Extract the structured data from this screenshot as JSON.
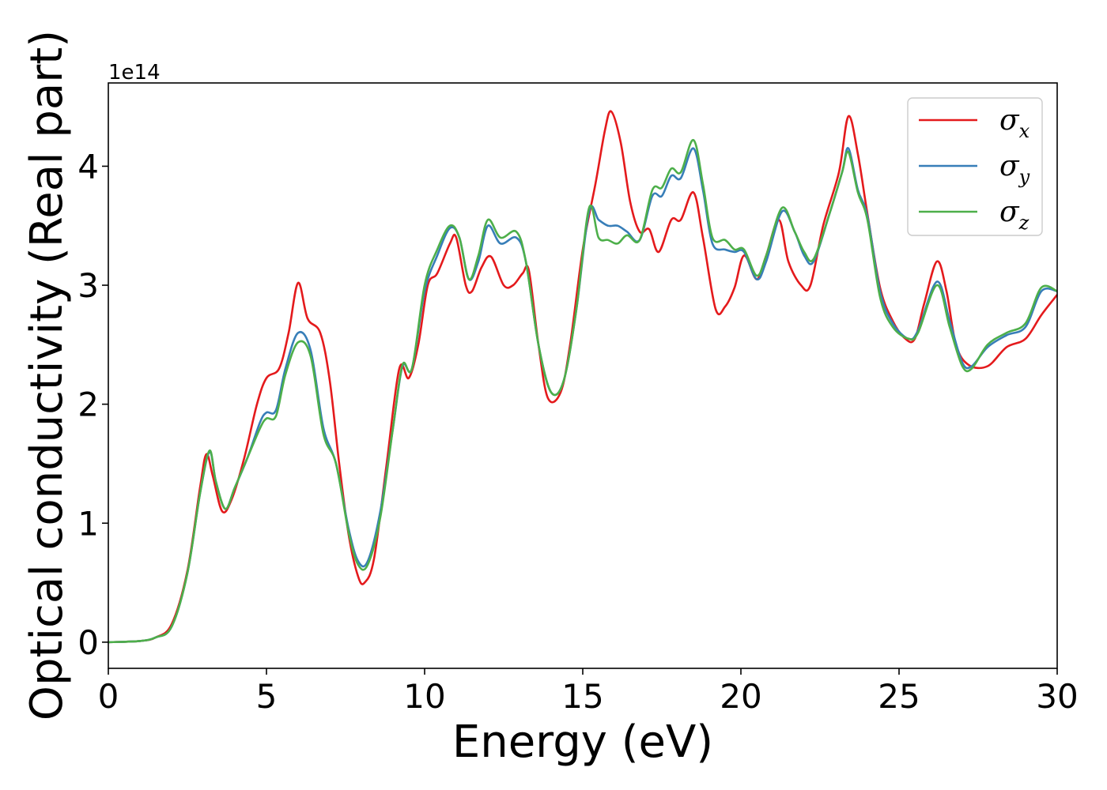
{
  "chart_data": {
    "type": "line",
    "title": "",
    "xlabel": "Energy (eV)",
    "ylabel": "Optical conductivity (Real part)",
    "y_offset_label": "1e14",
    "xlim": [
      0,
      30
    ],
    "ylim": [
      -0.22,
      4.7
    ],
    "x_ticks": [
      0,
      5,
      10,
      15,
      20,
      25,
      30
    ],
    "y_ticks": [
      0,
      1,
      2,
      3,
      4
    ],
    "grid": false,
    "legend_position": "top-right",
    "series": [
      {
        "name": "σx",
        "symbol": "σ",
        "subscript": "x",
        "color": "#e41a1c",
        "points": [
          [
            0,
            0
          ],
          [
            1,
            0.01
          ],
          [
            1.5,
            0.04
          ],
          [
            2,
            0.15
          ],
          [
            2.5,
            0.6
          ],
          [
            2.9,
            1.3
          ],
          [
            3.1,
            1.58
          ],
          [
            3.3,
            1.4
          ],
          [
            3.6,
            1.1
          ],
          [
            3.9,
            1.2
          ],
          [
            4.3,
            1.55
          ],
          [
            4.7,
            2.0
          ],
          [
            5.0,
            2.22
          ],
          [
            5.4,
            2.3
          ],
          [
            5.7,
            2.6
          ],
          [
            6.0,
            3.02
          ],
          [
            6.3,
            2.72
          ],
          [
            6.7,
            2.6
          ],
          [
            7.0,
            2.2
          ],
          [
            7.3,
            1.5
          ],
          [
            7.6,
            0.9
          ],
          [
            7.9,
            0.55
          ],
          [
            8.1,
            0.5
          ],
          [
            8.4,
            0.7
          ],
          [
            8.8,
            1.5
          ],
          [
            9.2,
            2.3
          ],
          [
            9.5,
            2.22
          ],
          [
            9.8,
            2.5
          ],
          [
            10.1,
            3.0
          ],
          [
            10.4,
            3.1
          ],
          [
            10.8,
            3.35
          ],
          [
            11.0,
            3.4
          ],
          [
            11.3,
            3.0
          ],
          [
            11.5,
            2.95
          ],
          [
            11.8,
            3.15
          ],
          [
            12.1,
            3.24
          ],
          [
            12.5,
            3.0
          ],
          [
            12.8,
            3.0
          ],
          [
            13.1,
            3.1
          ],
          [
            13.3,
            3.12
          ],
          [
            13.6,
            2.5
          ],
          [
            13.9,
            2.05
          ],
          [
            14.3,
            2.1
          ],
          [
            14.6,
            2.5
          ],
          [
            15.0,
            3.3
          ],
          [
            15.4,
            3.85
          ],
          [
            15.7,
            4.3
          ],
          [
            15.9,
            4.46
          ],
          [
            16.2,
            4.2
          ],
          [
            16.5,
            3.7
          ],
          [
            16.8,
            3.45
          ],
          [
            17.1,
            3.47
          ],
          [
            17.4,
            3.28
          ],
          [
            17.8,
            3.55
          ],
          [
            18.1,
            3.55
          ],
          [
            18.5,
            3.78
          ],
          [
            18.8,
            3.4
          ],
          [
            19.2,
            2.8
          ],
          [
            19.5,
            2.82
          ],
          [
            19.8,
            2.98
          ],
          [
            20.1,
            3.25
          ],
          [
            20.5,
            3.05
          ],
          [
            20.8,
            3.25
          ],
          [
            21.2,
            3.55
          ],
          [
            21.5,
            3.2
          ],
          [
            21.9,
            3.0
          ],
          [
            22.2,
            3.0
          ],
          [
            22.6,
            3.5
          ],
          [
            23.1,
            3.95
          ],
          [
            23.4,
            4.42
          ],
          [
            23.7,
            4.1
          ],
          [
            24.0,
            3.6
          ],
          [
            24.4,
            2.98
          ],
          [
            24.8,
            2.7
          ],
          [
            25.2,
            2.55
          ],
          [
            25.5,
            2.55
          ],
          [
            25.8,
            2.85
          ],
          [
            26.2,
            3.2
          ],
          [
            26.5,
            2.95
          ],
          [
            26.8,
            2.5
          ],
          [
            27.2,
            2.33
          ],
          [
            27.8,
            2.32
          ],
          [
            28.4,
            2.48
          ],
          [
            29.0,
            2.55
          ],
          [
            29.5,
            2.75
          ],
          [
            30,
            2.92
          ]
        ]
      },
      {
        "name": "σy",
        "symbol": "σ",
        "subscript": "y",
        "color": "#377eb8",
        "points": [
          [
            0,
            0
          ],
          [
            1,
            0.01
          ],
          [
            1.5,
            0.04
          ],
          [
            2,
            0.13
          ],
          [
            2.5,
            0.58
          ],
          [
            2.9,
            1.25
          ],
          [
            3.2,
            1.6
          ],
          [
            3.4,
            1.35
          ],
          [
            3.7,
            1.12
          ],
          [
            4.0,
            1.3
          ],
          [
            4.4,
            1.55
          ],
          [
            4.8,
            1.85
          ],
          [
            5.0,
            1.93
          ],
          [
            5.3,
            1.95
          ],
          [
            5.6,
            2.3
          ],
          [
            6.0,
            2.6
          ],
          [
            6.4,
            2.45
          ],
          [
            6.8,
            1.8
          ],
          [
            7.2,
            1.5
          ],
          [
            7.6,
            0.95
          ],
          [
            7.9,
            0.68
          ],
          [
            8.2,
            0.68
          ],
          [
            8.6,
            1.1
          ],
          [
            9.0,
            1.8
          ],
          [
            9.3,
            2.32
          ],
          [
            9.6,
            2.3
          ],
          [
            10.0,
            2.95
          ],
          [
            10.4,
            3.25
          ],
          [
            10.8,
            3.48
          ],
          [
            11.1,
            3.4
          ],
          [
            11.4,
            3.05
          ],
          [
            11.7,
            3.2
          ],
          [
            12.0,
            3.5
          ],
          [
            12.4,
            3.35
          ],
          [
            12.9,
            3.4
          ],
          [
            13.2,
            3.2
          ],
          [
            13.6,
            2.5
          ],
          [
            14.0,
            2.1
          ],
          [
            14.4,
            2.2
          ],
          [
            14.8,
            2.8
          ],
          [
            15.2,
            3.62
          ],
          [
            15.5,
            3.55
          ],
          [
            15.8,
            3.5
          ],
          [
            16.1,
            3.5
          ],
          [
            16.4,
            3.45
          ],
          [
            16.8,
            3.38
          ],
          [
            17.2,
            3.75
          ],
          [
            17.5,
            3.75
          ],
          [
            17.8,
            3.92
          ],
          [
            18.1,
            3.9
          ],
          [
            18.5,
            4.15
          ],
          [
            18.8,
            3.8
          ],
          [
            19.1,
            3.35
          ],
          [
            19.5,
            3.3
          ],
          [
            19.8,
            3.28
          ],
          [
            20.1,
            3.28
          ],
          [
            20.5,
            3.05
          ],
          [
            20.8,
            3.2
          ],
          [
            21.3,
            3.62
          ],
          [
            21.7,
            3.45
          ],
          [
            22.0,
            3.25
          ],
          [
            22.3,
            3.2
          ],
          [
            22.8,
            3.6
          ],
          [
            23.2,
            3.95
          ],
          [
            23.4,
            4.15
          ],
          [
            23.7,
            3.8
          ],
          [
            24.0,
            3.58
          ],
          [
            24.4,
            2.95
          ],
          [
            24.8,
            2.68
          ],
          [
            25.3,
            2.55
          ],
          [
            25.6,
            2.62
          ],
          [
            26.2,
            3.03
          ],
          [
            26.6,
            2.7
          ],
          [
            27.0,
            2.35
          ],
          [
            27.3,
            2.32
          ],
          [
            27.8,
            2.48
          ],
          [
            28.4,
            2.58
          ],
          [
            29.0,
            2.65
          ],
          [
            29.5,
            2.95
          ],
          [
            30,
            2.95
          ]
        ]
      },
      {
        "name": "σz",
        "symbol": "σ",
        "subscript": "z",
        "color": "#4daf4a",
        "points": [
          [
            0,
            0
          ],
          [
            1,
            0.01
          ],
          [
            1.5,
            0.04
          ],
          [
            2,
            0.13
          ],
          [
            2.5,
            0.58
          ],
          [
            2.9,
            1.25
          ],
          [
            3.2,
            1.61
          ],
          [
            3.4,
            1.35
          ],
          [
            3.7,
            1.12
          ],
          [
            4.0,
            1.3
          ],
          [
            4.4,
            1.55
          ],
          [
            4.8,
            1.8
          ],
          [
            5.0,
            1.88
          ],
          [
            5.3,
            1.9
          ],
          [
            5.6,
            2.25
          ],
          [
            6.0,
            2.52
          ],
          [
            6.4,
            2.4
          ],
          [
            6.8,
            1.75
          ],
          [
            7.2,
            1.5
          ],
          [
            7.6,
            0.92
          ],
          [
            7.9,
            0.65
          ],
          [
            8.2,
            0.65
          ],
          [
            8.6,
            1.05
          ],
          [
            9.0,
            1.8
          ],
          [
            9.3,
            2.33
          ],
          [
            9.6,
            2.3
          ],
          [
            10.0,
            3.0
          ],
          [
            10.4,
            3.3
          ],
          [
            10.8,
            3.5
          ],
          [
            11.1,
            3.4
          ],
          [
            11.4,
            3.05
          ],
          [
            11.7,
            3.25
          ],
          [
            12.0,
            3.55
          ],
          [
            12.4,
            3.4
          ],
          [
            12.9,
            3.45
          ],
          [
            13.2,
            3.2
          ],
          [
            13.6,
            2.5
          ],
          [
            14.0,
            2.1
          ],
          [
            14.4,
            2.2
          ],
          [
            14.8,
            2.8
          ],
          [
            15.2,
            3.65
          ],
          [
            15.5,
            3.4
          ],
          [
            15.8,
            3.38
          ],
          [
            16.1,
            3.35
          ],
          [
            16.4,
            3.42
          ],
          [
            16.8,
            3.38
          ],
          [
            17.2,
            3.8
          ],
          [
            17.5,
            3.82
          ],
          [
            17.8,
            3.98
          ],
          [
            18.1,
            3.95
          ],
          [
            18.5,
            4.22
          ],
          [
            18.8,
            3.85
          ],
          [
            19.1,
            3.4
          ],
          [
            19.5,
            3.38
          ],
          [
            19.8,
            3.3
          ],
          [
            20.1,
            3.3
          ],
          [
            20.5,
            3.08
          ],
          [
            20.8,
            3.25
          ],
          [
            21.3,
            3.65
          ],
          [
            21.7,
            3.45
          ],
          [
            22.0,
            3.28
          ],
          [
            22.3,
            3.22
          ],
          [
            22.8,
            3.6
          ],
          [
            23.2,
            3.95
          ],
          [
            23.4,
            4.12
          ],
          [
            23.7,
            3.78
          ],
          [
            24.0,
            3.55
          ],
          [
            24.4,
            2.9
          ],
          [
            24.8,
            2.65
          ],
          [
            25.3,
            2.55
          ],
          [
            25.6,
            2.6
          ],
          [
            26.2,
            3.0
          ],
          [
            26.6,
            2.65
          ],
          [
            27.0,
            2.32
          ],
          [
            27.3,
            2.3
          ],
          [
            27.8,
            2.5
          ],
          [
            28.4,
            2.6
          ],
          [
            29.0,
            2.68
          ],
          [
            29.5,
            2.98
          ],
          [
            30,
            2.95
          ]
        ]
      }
    ]
  }
}
